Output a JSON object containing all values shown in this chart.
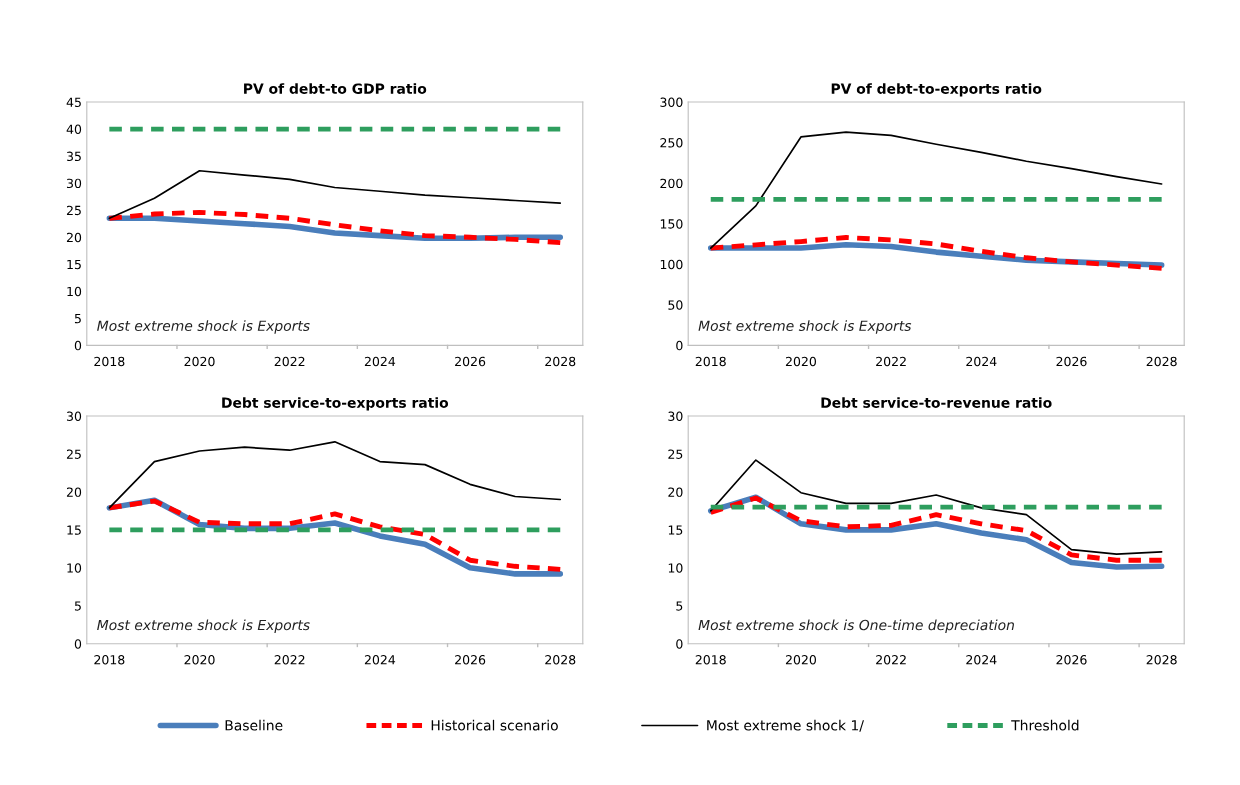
{
  "chart_data": [
    {
      "type": "line",
      "title": "PV of debt-to GDP ratio",
      "categories": [
        "2018",
        null,
        "2020",
        null,
        "2022",
        null,
        "2024",
        null,
        "2026",
        null,
        "2028"
      ],
      "ylim": [
        0,
        45
      ],
      "yticks": [
        0,
        5,
        10,
        15,
        20,
        25,
        30,
        35,
        40,
        45
      ],
      "grid": false,
      "legend": "bottom",
      "annotations": [
        "Most extreme shock is Exports"
      ],
      "series": [
        {
          "name": "Baseline",
          "color": "#4a7ebb",
          "line_style": "solid",
          "values": [
            23.5,
            23.5,
            23,
            22.5,
            22,
            20.8,
            20.3,
            19.8,
            19.8,
            20,
            20
          ]
        },
        {
          "name": "Historical scenario",
          "color": "#ff0000",
          "line_style": "dashed",
          "values": [
            23.5,
            24.3,
            24.6,
            24.2,
            23.5,
            22.3,
            21.2,
            20.3,
            20,
            19.6,
            19
          ]
        },
        {
          "name": "Most extreme shock 1/",
          "color": "#000000",
          "line_style": "solid",
          "values": [
            23.5,
            27.2,
            32.3,
            31.5,
            30.7,
            29.2,
            28.5,
            27.8,
            27.3,
            26.8,
            26.3
          ]
        },
        {
          "name": "Threshold",
          "color": "#2e9e5e",
          "line_style": "dashed",
          "values": [
            40,
            40,
            40,
            40,
            40,
            40,
            40,
            40,
            40,
            40,
            40
          ]
        }
      ]
    },
    {
      "type": "line",
      "title": "PV of debt-to-exports ratio",
      "categories": [
        "2018",
        null,
        "2020",
        null,
        "2022",
        null,
        "2024",
        null,
        "2026",
        null,
        "2028"
      ],
      "ylim": [
        0,
        300
      ],
      "yticks": [
        0,
        50,
        100,
        150,
        200,
        250,
        300
      ],
      "grid": false,
      "annotations": [
        "Most extreme shock is Exports"
      ],
      "series": [
        {
          "color": "#4a7ebb",
          "line_style": "solid",
          "values": [
            120,
            120,
            120,
            124,
            122,
            115,
            110,
            105,
            103,
            101,
            99
          ]
        },
        {
          "color": "#ff0000",
          "line_style": "dashed",
          "values": [
            120,
            124,
            128,
            133,
            130,
            125,
            116,
            108,
            103,
            99,
            95
          ]
        },
        {
          "color": "#000000",
          "line_style": "solid",
          "values": [
            120,
            172,
            257,
            263,
            259,
            248,
            238,
            227,
            218,
            208,
            199
          ]
        },
        {
          "color": "#2e9e5e",
          "line_style": "dashed",
          "values": [
            180,
            180,
            180,
            180,
            180,
            180,
            180,
            180,
            180,
            180,
            180
          ]
        }
      ]
    },
    {
      "type": "line",
      "title": "Debt service-to-exports ratio",
      "categories": [
        "2018",
        null,
        "2020",
        null,
        "2022",
        null,
        "2024",
        null,
        "2026",
        null,
        "2028"
      ],
      "ylim": [
        0,
        30
      ],
      "yticks": [
        0,
        5,
        10,
        15,
        20,
        25,
        30
      ],
      "grid": false,
      "annotations": [
        "Most extreme shock is Exports"
      ],
      "series": [
        {
          "color": "#4a7ebb",
          "line_style": "solid",
          "values": [
            17.9,
            18.9,
            15.7,
            15.2,
            15.2,
            15.9,
            14.2,
            13.1,
            10,
            9.2,
            9.2
          ]
        },
        {
          "color": "#ff0000",
          "line_style": "dashed",
          "values": [
            17.9,
            18.8,
            16,
            15.8,
            15.8,
            17.1,
            15.4,
            14.4,
            11,
            10.2,
            9.8
          ]
        },
        {
          "color": "#000000",
          "line_style": "solid",
          "values": [
            17.9,
            24,
            25.4,
            25.9,
            25.5,
            26.6,
            24,
            23.6,
            21,
            19.4,
            19
          ]
        },
        {
          "color": "#2e9e5e",
          "line_style": "dashed",
          "values": [
            15,
            15,
            15,
            15,
            15,
            15,
            15,
            15,
            15,
            15,
            15
          ]
        }
      ]
    },
    {
      "type": "line",
      "title": "Debt service-to-revenue ratio",
      "categories": [
        "2018",
        null,
        "2020",
        null,
        "2022",
        null,
        "2024",
        null,
        "2026",
        null,
        "2028"
      ],
      "ylim": [
        0,
        30
      ],
      "yticks": [
        0,
        5,
        10,
        15,
        20,
        25,
        30
      ],
      "grid": false,
      "annotations": [
        "Most extreme shock is One-time depreciation"
      ],
      "series": [
        {
          "color": "#4a7ebb",
          "line_style": "solid",
          "values": [
            17.5,
            19.3,
            15.8,
            15,
            15,
            15.8,
            14.6,
            13.7,
            10.7,
            10.1,
            10.2
          ]
        },
        {
          "color": "#ff0000",
          "line_style": "dashed",
          "values": [
            17.3,
            19.2,
            16.2,
            15.4,
            15.6,
            17,
            15.8,
            14.9,
            11.7,
            11,
            11
          ]
        },
        {
          "color": "#000000",
          "line_style": "solid",
          "values": [
            17.5,
            24.2,
            19.9,
            18.5,
            18.5,
            19.6,
            17.9,
            17,
            12.4,
            11.8,
            12.1
          ]
        },
        {
          "color": "#2e9e5e",
          "line_style": "dashed",
          "values": [
            18,
            18,
            18,
            18,
            18,
            18,
            18,
            18,
            18,
            18,
            18
          ]
        }
      ]
    }
  ]
}
